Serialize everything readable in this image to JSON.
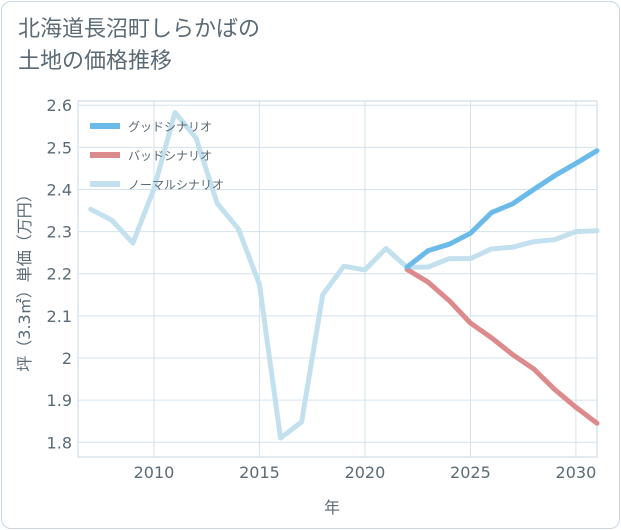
{
  "title_lines": [
    "北海道長沼町しらかばの",
    "土地の価格推移"
  ],
  "chart_data": {
    "type": "line",
    "title": "北海道長沼町しらかばの土地の価格推移",
    "xlabel": "年",
    "ylabel": "坪（3.3㎡）単価（万円）",
    "xlim": [
      2006.4,
      2031
    ],
    "ylim": [
      1.765,
      2.61
    ],
    "xticks": [
      2010,
      2015,
      2020,
      2025,
      2030
    ],
    "yticks": [
      1.8,
      1.9,
      2,
      2.1,
      2.2,
      2.3,
      2.4,
      2.5,
      2.6
    ],
    "ytick_labels": [
      "1.8",
      "1.9",
      "2",
      "2.1",
      "2.2",
      "2.3",
      "2.4",
      "2.5",
      "2.6"
    ],
    "grid": true,
    "legend": "top-left",
    "series": [
      {
        "name": "グッドシナリオ",
        "color": "#6bbbea",
        "x": [
          2022,
          2023,
          2024,
          2025,
          2026,
          2027,
          2028,
          2029,
          2030,
          2031
        ],
        "y": [
          2.216,
          2.255,
          2.27,
          2.296,
          2.345,
          2.366,
          2.4,
          2.433,
          2.462,
          2.492
        ]
      },
      {
        "name": "バッドシナリオ",
        "color": "#dc8a8c",
        "x": [
          2022,
          2023,
          2024,
          2025,
          2026,
          2027,
          2028,
          2029,
          2030,
          2031
        ],
        "y": [
          2.21,
          2.18,
          2.136,
          2.083,
          2.048,
          2.008,
          1.974,
          1.925,
          1.883,
          1.845
        ]
      },
      {
        "name": "ノーマルシナリオ",
        "color": "#c3e0ee",
        "x": [
          2007,
          2008,
          2009,
          2010,
          2011,
          2012,
          2013,
          2014,
          2015,
          2016,
          2017,
          2018,
          2019,
          2020,
          2021,
          2022,
          2023,
          2024,
          2025,
          2026,
          2027,
          2028,
          2029,
          2030,
          2031
        ],
        "y": [
          2.353,
          2.327,
          2.273,
          2.402,
          2.583,
          2.522,
          2.367,
          2.307,
          2.175,
          1.81,
          1.848,
          2.15,
          2.218,
          2.209,
          2.26,
          2.215,
          2.216,
          2.236,
          2.236,
          2.259,
          2.263,
          2.276,
          2.281,
          2.3,
          2.302
        ]
      }
    ]
  }
}
